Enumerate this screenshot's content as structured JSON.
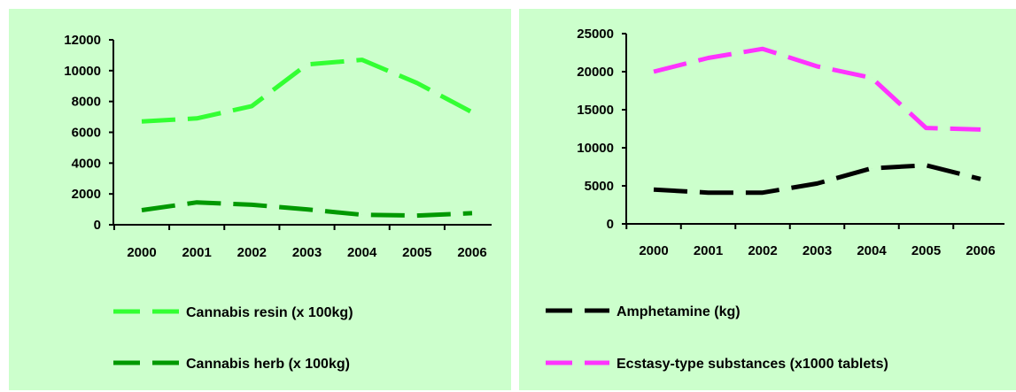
{
  "chart_data": [
    {
      "type": "line",
      "title": "",
      "xlabel": "",
      "ylabel": "",
      "x": [
        "2000",
        "2001",
        "2002",
        "2003",
        "2004",
        "2005",
        "2006"
      ],
      "ylim": [
        0,
        12000
      ],
      "yticks": [
        "0",
        "2000",
        "4000",
        "6000",
        "8000",
        "10000",
        "12000"
      ],
      "grid": false,
      "legend_position": "bottom",
      "series": [
        {
          "name": "Cannabis resin (x 100kg)",
          "color": "#33ff33",
          "values": [
            6700,
            6900,
            7700,
            10400,
            10700,
            9200,
            7300
          ]
        },
        {
          "name": "Cannabis herb (x 100kg)",
          "color": "#009900",
          "values": [
            950,
            1450,
            1300,
            1000,
            650,
            600,
            750
          ]
        }
      ]
    },
    {
      "type": "line",
      "title": "",
      "xlabel": "",
      "ylabel": "",
      "x": [
        "2000",
        "2001",
        "2002",
        "2003",
        "2004",
        "2005",
        "2006"
      ],
      "ylim": [
        0,
        25000
      ],
      "yticks": [
        "0",
        "5000",
        "10000",
        "15000",
        "20000",
        "25000"
      ],
      "grid": false,
      "legend_position": "bottom",
      "series": [
        {
          "name": "Amphetamine (kg)",
          "color": "#000000",
          "values": [
            4500,
            4100,
            4100,
            5300,
            7300,
            7700,
            5900
          ]
        },
        {
          "name": "Ecstasy-type substances (x1000 tablets)",
          "color": "#ff33ff",
          "values": [
            20000,
            21800,
            23000,
            20700,
            19200,
            12600,
            12400
          ]
        }
      ]
    }
  ]
}
